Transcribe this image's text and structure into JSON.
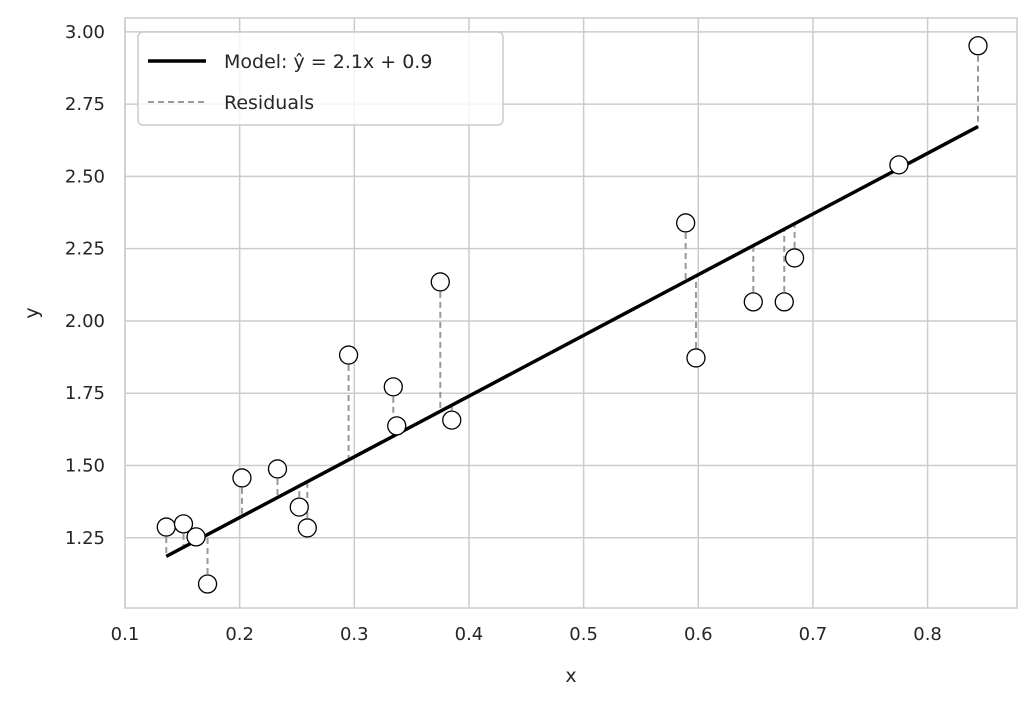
{
  "chart_data": {
    "type": "scatter",
    "xlabel": "x",
    "ylabel": "y",
    "xlim": [
      0.1,
      0.878
    ],
    "ylim": [
      1.007,
      3.048
    ],
    "xticks": [
      "0.1",
      "0.2",
      "0.3",
      "0.4",
      "0.5",
      "0.6",
      "0.7",
      "0.8"
    ],
    "yticks": [
      "1.25",
      "1.50",
      "1.75",
      "2.00",
      "2.25",
      "2.50",
      "2.75",
      "3.00"
    ],
    "grid": true,
    "legend_position": "top-left",
    "model": {
      "slope": 2.1,
      "intercept": 0.9,
      "x_range": [
        0.136,
        0.844
      ],
      "label": "Model: ŷ = 2.1x + 0.9",
      "color": "#000000"
    },
    "residuals_label": "Residuals",
    "residual_color": "#999999",
    "points": [
      {
        "x": 0.136,
        "y": 1.287
      },
      {
        "x": 0.151,
        "y": 1.298
      },
      {
        "x": 0.162,
        "y": 1.253
      },
      {
        "x": 0.172,
        "y": 1.09
      },
      {
        "x": 0.202,
        "y": 1.457
      },
      {
        "x": 0.233,
        "y": 1.488
      },
      {
        "x": 0.252,
        "y": 1.356
      },
      {
        "x": 0.259,
        "y": 1.284
      },
      {
        "x": 0.295,
        "y": 1.882
      },
      {
        "x": 0.334,
        "y": 1.772
      },
      {
        "x": 0.337,
        "y": 1.637
      },
      {
        "x": 0.375,
        "y": 2.135
      },
      {
        "x": 0.385,
        "y": 1.657
      },
      {
        "x": 0.589,
        "y": 2.339
      },
      {
        "x": 0.598,
        "y": 1.872
      },
      {
        "x": 0.648,
        "y": 2.066
      },
      {
        "x": 0.675,
        "y": 2.066
      },
      {
        "x": 0.684,
        "y": 2.218
      },
      {
        "x": 0.775,
        "y": 2.54
      },
      {
        "x": 0.844,
        "y": 2.952
      }
    ]
  }
}
